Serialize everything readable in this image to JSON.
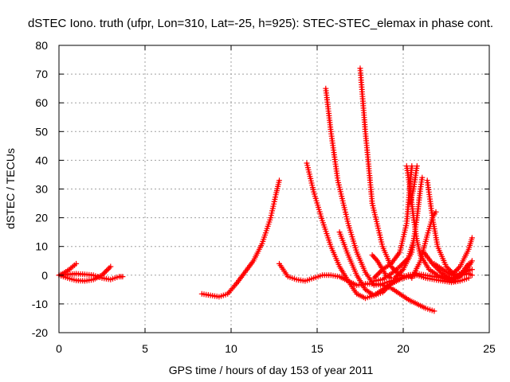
{
  "chart_data": {
    "type": "scatter",
    "title": "dSTEC Iono. truth (ufpr, Lon=310, Lat=-25, h=925): STEC-STEC_elemax in phase cont.",
    "xlabel": "GPS time / hours of day 153 of year 2011",
    "ylabel": "dSTEC  / TECUs",
    "xlim": [
      0,
      25
    ],
    "ylim": [
      -20,
      80
    ],
    "xticks": [
      0,
      5,
      10,
      15,
      20,
      25
    ],
    "yticks": [
      -20,
      -10,
      0,
      10,
      20,
      30,
      40,
      50,
      60,
      70,
      80
    ],
    "grid": true,
    "marker": "+",
    "color": "#ff0000",
    "series": [
      {
        "x": [
          0.0,
          0.2,
          0.4,
          0.6,
          0.8,
          1.0
        ],
        "y": [
          0.0,
          0.5,
          1.2,
          2.0,
          3.0,
          4.0
        ]
      },
      {
        "x": [
          0.0,
          0.5,
          1.0,
          1.5,
          2.0,
          2.5,
          3.0
        ],
        "y": [
          0.0,
          -1.0,
          -1.8,
          -2.0,
          -1.5,
          0.0,
          3.0
        ]
      },
      {
        "x": [
          0.3,
          1.0,
          1.5,
          2.0,
          2.5,
          3.0,
          3.5,
          3.7
        ],
        "y": [
          0.2,
          0.5,
          0.3,
          0.0,
          -1.0,
          -1.5,
          -0.5,
          -0.5
        ]
      },
      {
        "x": [
          8.3,
          8.8,
          9.3,
          9.8,
          10.3,
          10.8,
          11.3,
          11.8,
          12.3,
          12.6,
          12.8
        ],
        "y": [
          -6.5,
          -7.0,
          -7.5,
          -6.5,
          -3.0,
          1.0,
          5.0,
          11.0,
          20.0,
          28.0,
          33.0
        ]
      },
      {
        "x": [
          12.8,
          13.3,
          13.8,
          14.3,
          14.8,
          15.3,
          15.8,
          16.3,
          16.8,
          17.3,
          17.8,
          18.3,
          18.8,
          19.3,
          19.8,
          20.3,
          20.8,
          21.3,
          21.8
        ],
        "y": [
          4.0,
          -0.5,
          -1.5,
          -2.0,
          -1.0,
          0.0,
          0.0,
          -0.5,
          -2.0,
          -3.5,
          -3.0,
          -3.0,
          -3.5,
          -4.5,
          -6.5,
          -8.5,
          -10.0,
          -11.5,
          -12.5
        ]
      },
      {
        "x": [
          14.4,
          14.8,
          15.3,
          15.8,
          16.3,
          16.8,
          17.3,
          17.8,
          18.3,
          18.8,
          19.3,
          19.8,
          20.3,
          20.8
        ],
        "y": [
          39.0,
          29.0,
          19.0,
          10.0,
          3.0,
          -2.0,
          -6.5,
          -8.0,
          -7.0,
          -5.0,
          -3.0,
          -1.5,
          -0.5,
          0.0
        ]
      },
      {
        "x": [
          15.5,
          15.8,
          16.2,
          16.8,
          17.3,
          17.8,
          18.3,
          18.8,
          19.3,
          19.8,
          20.3
        ],
        "y": [
          65.0,
          50.0,
          33.0,
          18.0,
          8.0,
          1.0,
          -3.5,
          -3.0,
          -2.0,
          -1.0,
          0.0
        ]
      },
      {
        "x": [
          16.3,
          16.8,
          17.3,
          17.8,
          18.3,
          18.8,
          19.3,
          19.8,
          20.3,
          20.8,
          21.3,
          21.8,
          22.3,
          22.8,
          23.3,
          23.8
        ],
        "y": [
          15.0,
          7.0,
          0.0,
          -5.0,
          -7.0,
          -6.0,
          -3.0,
          -1.0,
          0.0,
          0.5,
          0.0,
          -0.5,
          -1.0,
          -1.5,
          0.0,
          4.0
        ]
      },
      {
        "x": [
          17.5,
          17.8,
          18.2,
          18.8,
          19.3,
          19.8,
          20.3,
          20.8,
          21.3,
          21.8,
          22.3,
          22.8,
          23.3,
          23.8
        ],
        "y": [
          72.0,
          50.0,
          25.0,
          10.0,
          3.0,
          0.0,
          -0.5,
          0.0,
          -1.0,
          -1.5,
          -2.0,
          -2.5,
          -2.0,
          -1.0
        ]
      },
      {
        "x": [
          18.2,
          18.5,
          18.8,
          19.0,
          19.3
        ],
        "y": [
          7.0,
          5.0,
          2.0,
          0.0,
          -1.0
        ]
      },
      {
        "x": [
          18.3,
          18.8,
          19.3,
          19.8,
          20.3,
          20.6
        ],
        "y": [
          -2.0,
          -1.5,
          0.5,
          3.0,
          6.0,
          12.0
        ]
      },
      {
        "x": [
          18.3,
          18.8,
          19.3,
          19.8,
          20.2,
          20.4,
          20.5
        ],
        "y": [
          -1.0,
          2.0,
          4.0,
          8.0,
          18.0,
          32.0,
          38.0
        ]
      },
      {
        "x": [
          20.2,
          20.4,
          20.6,
          20.8,
          21.0,
          21.5,
          22.0,
          22.5,
          23.0
        ],
        "y": [
          38.0,
          30.0,
          20.0,
          12.0,
          7.0,
          2.0,
          0.0,
          -1.0,
          -2.0
        ]
      },
      {
        "x": [
          19.5,
          20.0,
          20.5,
          20.8,
          21.0,
          21.1
        ],
        "y": [
          -1.0,
          2.0,
          8.0,
          20.0,
          30.0,
          34.0
        ]
      },
      {
        "x": [
          20.8,
          20.6,
          20.4
        ],
        "y": [
          38.0,
          30.0,
          25.0
        ]
      },
      {
        "x": [
          21.4,
          21.7,
          22.0,
          22.5,
          23.0,
          23.5,
          24.0
        ],
        "y": [
          33.0,
          20.0,
          10.0,
          3.0,
          0.0,
          1.0,
          2.0
        ]
      },
      {
        "x": [
          20.5,
          21.0,
          21.4,
          21.7,
          21.9
        ],
        "y": [
          -1.0,
          5.0,
          14.0,
          20.0,
          22.0
        ]
      },
      {
        "x": [
          21.2,
          21.7,
          22.2,
          22.7,
          23.2,
          23.7,
          24.0
        ],
        "y": [
          8.0,
          4.0,
          1.0,
          -1.0,
          -1.0,
          2.0,
          5.0
        ]
      },
      {
        "x": [
          21.8,
          22.3,
          22.8,
          23.3,
          23.8,
          24.0
        ],
        "y": [
          4.0,
          2.0,
          0.0,
          3.0,
          9.0,
          13.0
        ]
      },
      {
        "x": [
          22.3,
          22.8,
          23.3,
          23.8,
          24.0
        ],
        "y": [
          -1.0,
          -2.0,
          0.0,
          0.5,
          0.0
        ]
      }
    ]
  }
}
